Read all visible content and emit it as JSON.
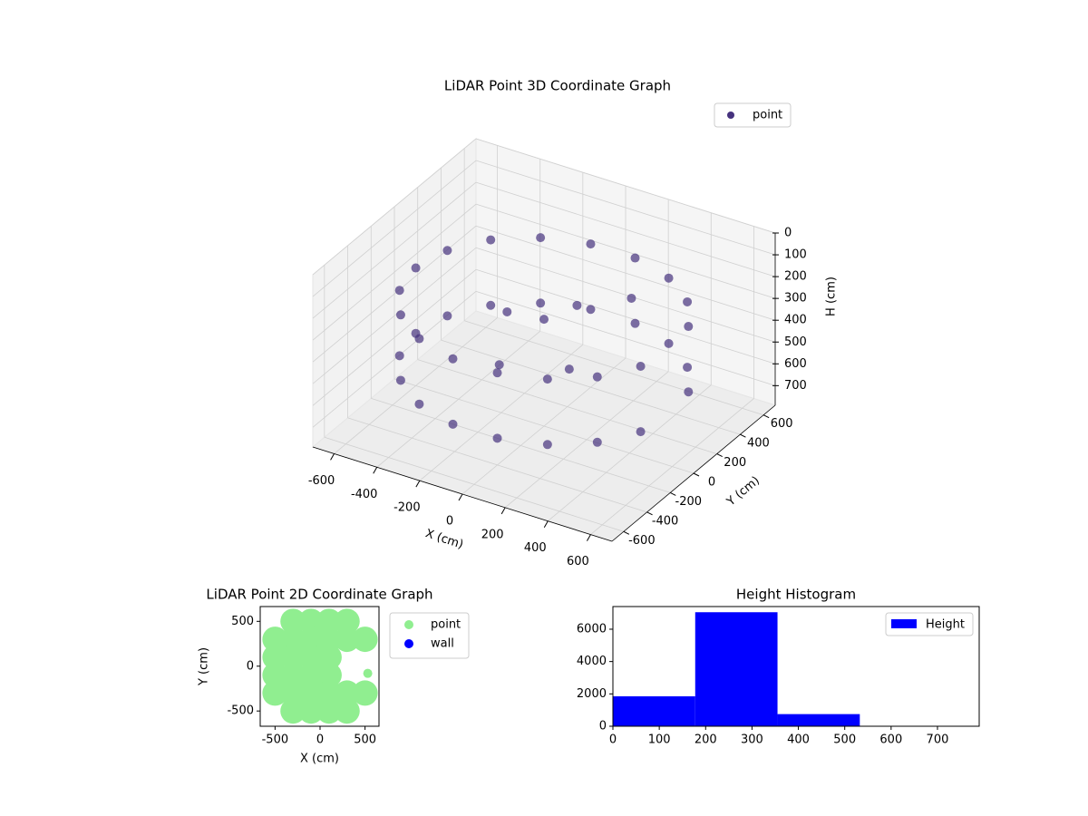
{
  "chart_data": [
    {
      "type": "scatter3d",
      "title": "LiDAR Point 3D Coordinate Graph",
      "xlabel": "X (cm)",
      "ylabel": "Y (cm)",
      "zlabel": "H (cm)",
      "xlim": [
        -700,
        700
      ],
      "ylim": [
        -700,
        700
      ],
      "zlim": [
        790,
        0
      ],
      "xticks": [
        -600,
        -400,
        -200,
        0,
        200,
        400,
        600
      ],
      "yticks": [
        -600,
        -400,
        -200,
        0,
        200,
        400,
        600
      ],
      "zticks": [
        0,
        100,
        200,
        300,
        400,
        500,
        600,
        700
      ],
      "grid": true,
      "legend": "upper right",
      "series": [
        {
          "name": "point",
          "color": "#46327e",
          "x": [
            564,
            460,
            300,
            104,
            -104,
            -300,
            -460,
            -564,
            -600,
            -564,
            -460,
            -300,
            -104,
            104,
            300,
            460,
            564,
            564,
            460,
            300,
            104,
            -104,
            -300,
            -460,
            -564,
            -600,
            -564,
            -460,
            -300,
            -104,
            104,
            300,
            460,
            564,
            0,
            100,
            -200,
            200,
            -100,
            300
          ],
          "y": [
            205,
            386,
            520,
            591,
            591,
            520,
            386,
            205,
            0,
            -205,
            -386,
            -520,
            -591,
            -591,
            -520,
            -386,
            -205,
            205,
            386,
            520,
            591,
            591,
            520,
            386,
            205,
            0,
            -205,
            -386,
            -520,
            -591,
            -591,
            -520,
            -386,
            -205,
            0,
            100,
            50,
            -150,
            -200,
            200
          ],
          "z": [
            250,
            250,
            250,
            250,
            250,
            250,
            250,
            250,
            250,
            250,
            250,
            250,
            250,
            250,
            250,
            250,
            250,
            550,
            550,
            550,
            550,
            550,
            550,
            550,
            550,
            550,
            550,
            550,
            550,
            550,
            550,
            550,
            550,
            550,
            300,
            250,
            350,
            400,
            450,
            200
          ]
        }
      ]
    },
    {
      "type": "scatter",
      "title": "LiDAR Point 2D Coordinate Graph",
      "xlabel": "X (cm)",
      "ylabel": "Y (cm)",
      "xlim": [
        -665,
        655
      ],
      "ylim": [
        -670,
        665
      ],
      "xticks": [
        -500,
        0,
        500
      ],
      "yticks": [
        -500,
        0,
        500
      ],
      "legend": "outside right",
      "series": [
        {
          "name": "point",
          "color": "#90ee90",
          "x": [
            -300,
            -100,
            100,
            300,
            -500,
            -300,
            -100,
            100,
            300,
            500,
            -500,
            -300,
            -100,
            100,
            -500,
            -300,
            -100,
            100,
            -500,
            -300,
            -100,
            100,
            300,
            500,
            -300,
            -100,
            100,
            300,
            530
          ],
          "y": [
            500,
            500,
            500,
            500,
            300,
            300,
            300,
            300,
            300,
            300,
            100,
            100,
            100,
            100,
            -100,
            -100,
            -100,
            -100,
            -300,
            -300,
            -300,
            -300,
            -300,
            -300,
            -500,
            -500,
            -500,
            -500,
            -80
          ]
        },
        {
          "name": "wall",
          "color": "#0000ff",
          "x": [],
          "y": []
        }
      ]
    },
    {
      "type": "histogram",
      "title": "Height Histogram",
      "name": "Height",
      "color": "#0000ff",
      "bins": [
        0,
        177.5,
        355,
        532.5,
        710
      ],
      "counts": [
        1850,
        7050,
        750,
        20
      ],
      "xlim": [
        0,
        790
      ],
      "ylim": [
        0,
        7400
      ],
      "xticks": [
        0,
        100,
        200,
        300,
        400,
        500,
        600,
        700
      ],
      "yticks": [
        0,
        2000,
        4000,
        6000
      ],
      "legend": "upper right"
    }
  ]
}
